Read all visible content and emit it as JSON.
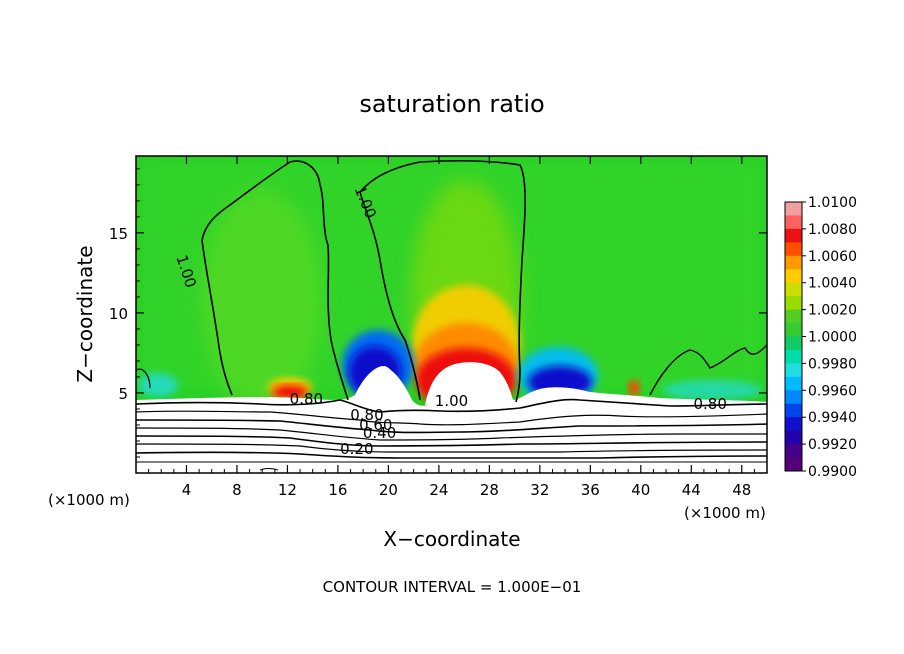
{
  "chart_data": {
    "type": "heatmap",
    "title": "saturation ratio",
    "xlabel": "X−coordinate",
    "ylabel": "Z−coordinate",
    "x_unit": "(×1000 m)",
    "x_unit_right": "(×1000 m)",
    "xlim": [
      0,
      50
    ],
    "ylim": [
      0,
      19.8
    ],
    "x_ticks": [
      "4",
      "8",
      "12",
      "16",
      "20",
      "24",
      "28",
      "32",
      "36",
      "40",
      "44",
      "48"
    ],
    "x_tick_values": [
      4,
      8,
      12,
      16,
      20,
      24,
      28,
      32,
      36,
      40,
      44,
      48
    ],
    "y_ticks": [
      "5",
      "10",
      "15"
    ],
    "y_tick_values": [
      5,
      10,
      15
    ],
    "footer": "CONTOUR INTERVAL = 1.000E−01",
    "colorbar": {
      "labels": [
        "1.0100",
        "1.0080",
        "1.0060",
        "1.0040",
        "1.0020",
        "1.0000",
        "0.9980",
        "0.9960",
        "0.9940",
        "0.9920",
        "0.9900"
      ],
      "colors": [
        "#f0a0a0",
        "#ff6060",
        "#ee1111",
        "#ff5000",
        "#ff9900",
        "#ffcc00",
        "#ccdd00",
        "#99dd00",
        "#55cc22",
        "#33cc33",
        "#11cc66",
        "#00ddaa",
        "#22dddd",
        "#00bbff",
        "#0088ff",
        "#0044ee",
        "#1111cc",
        "#2200aa",
        "#440088",
        "#550077"
      ]
    },
    "contour_labels": [
      {
        "text": "1.00",
        "x": 3.6,
        "z": 12.5
      },
      {
        "text": "1.00",
        "x": 17.8,
        "z": 16.8
      },
      {
        "text": "1.00",
        "x": 25.0,
        "z": 4.2
      },
      {
        "text": "0.80",
        "x": 13.5,
        "z": 4.3
      },
      {
        "text": "0.80",
        "x": 18.3,
        "z": 3.3
      },
      {
        "text": "0.80",
        "x": 45.5,
        "z": 4.0
      },
      {
        "text": "0.60",
        "x": 19.0,
        "z": 2.7
      },
      {
        "text": "0.40",
        "x": 19.3,
        "z": 2.2
      },
      {
        "text": "0.20",
        "x": 17.5,
        "z": 1.2
      }
    ],
    "contour_levels": [
      0.2,
      0.4,
      0.6,
      0.8,
      1.0
    ],
    "grid": false,
    "legend": "right"
  }
}
